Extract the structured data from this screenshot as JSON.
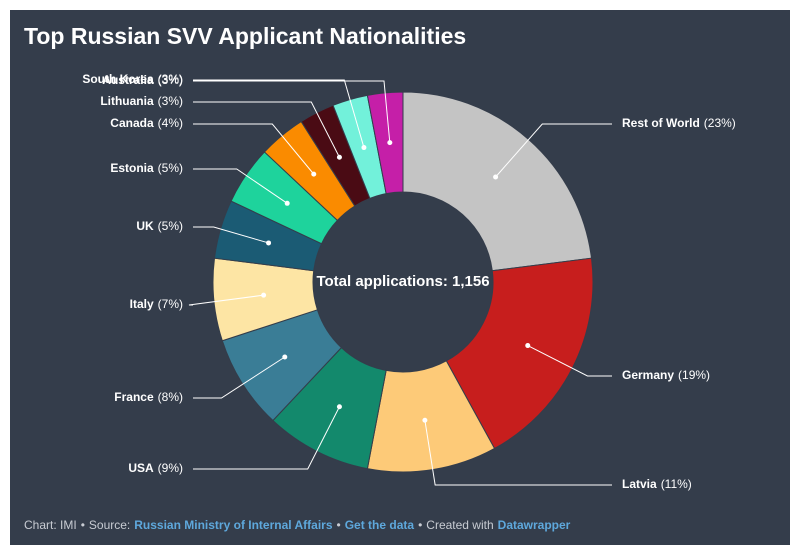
{
  "chart_data": {
    "type": "donut",
    "title": "Top Russian SVV Applicant Nationalities",
    "center_label": "Total applications: 1,156",
    "categories": [
      "Rest of World",
      "Germany",
      "Latvia",
      "USA",
      "France",
      "Italy",
      "UK",
      "Estonia",
      "Canada",
      "Lithuania",
      "South Korea",
      "Australia"
    ],
    "values": [
      23,
      19,
      11,
      9,
      8,
      7,
      5,
      5,
      4,
      3,
      3,
      3
    ],
    "value_labels": [
      "(23%)",
      "(19%)",
      "(11%)",
      "(9%)",
      "(8%)",
      "(7%)",
      "(5%)",
      "(5%)",
      "(4%)",
      "(3%)",
      "(3%)",
      "(3%)"
    ],
    "colors": [
      "#c4c4c4",
      "#c71e1d",
      "#fdca78",
      "#13896c",
      "#3a7d96",
      "#fde5a4",
      "#1b5b74",
      "#1ed39c",
      "#fa8b00",
      "#4a0b14",
      "#72f1da",
      "#c51fa8"
    ]
  },
  "footer": {
    "credit": "Chart: IMI",
    "separator": "•",
    "source_label": "Source:",
    "source": "Russian Ministry of Internal Affairs",
    "data_link": "Get the data",
    "made_with": "Created with",
    "tool": "Datawrapper"
  }
}
